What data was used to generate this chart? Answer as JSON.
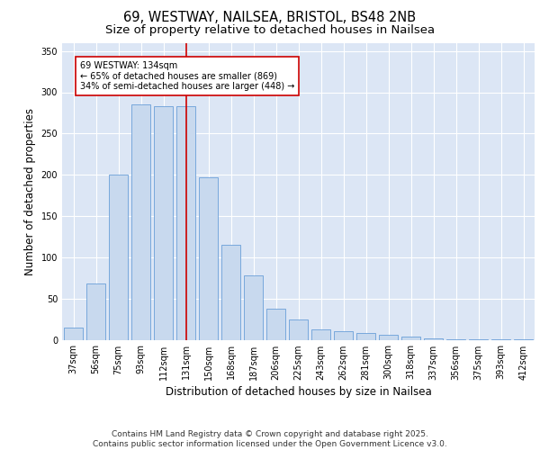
{
  "title_line1": "69, WESTWAY, NAILSEA, BRISTOL, BS48 2NB",
  "title_line2": "Size of property relative to detached houses in Nailsea",
  "xlabel": "Distribution of detached houses by size in Nailsea",
  "ylabel": "Number of detached properties",
  "categories": [
    "37sqm",
    "56sqm",
    "75sqm",
    "93sqm",
    "112sqm",
    "131sqm",
    "150sqm",
    "168sqm",
    "187sqm",
    "206sqm",
    "225sqm",
    "243sqm",
    "262sqm",
    "281sqm",
    "300sqm",
    "318sqm",
    "337sqm",
    "356sqm",
    "375sqm",
    "393sqm",
    "412sqm"
  ],
  "values": [
    15,
    68,
    200,
    285,
    283,
    283,
    197,
    115,
    78,
    38,
    25,
    13,
    10,
    8,
    6,
    4,
    2,
    1,
    1,
    1,
    1
  ],
  "bar_color": "#c8d9ee",
  "bar_edge_color": "#6a9fd8",
  "highlight_index": 5,
  "vline_color": "#cc0000",
  "annotation_text": "69 WESTWAY: 134sqm\n← 65% of detached houses are smaller (869)\n34% of semi-detached houses are larger (448) →",
  "annotation_box_color": "#ffffff",
  "annotation_box_edge": "#cc0000",
  "ylim": [
    0,
    360
  ],
  "yticks": [
    0,
    50,
    100,
    150,
    200,
    250,
    300,
    350
  ],
  "background_color": "#dce6f5",
  "footer_text": "Contains HM Land Registry data © Crown copyright and database right 2025.\nContains public sector information licensed under the Open Government Licence v3.0.",
  "title_fontsize": 10.5,
  "subtitle_fontsize": 9.5,
  "axis_label_fontsize": 8.5,
  "tick_fontsize": 7,
  "annotation_fontsize": 7,
  "footer_fontsize": 6.5
}
